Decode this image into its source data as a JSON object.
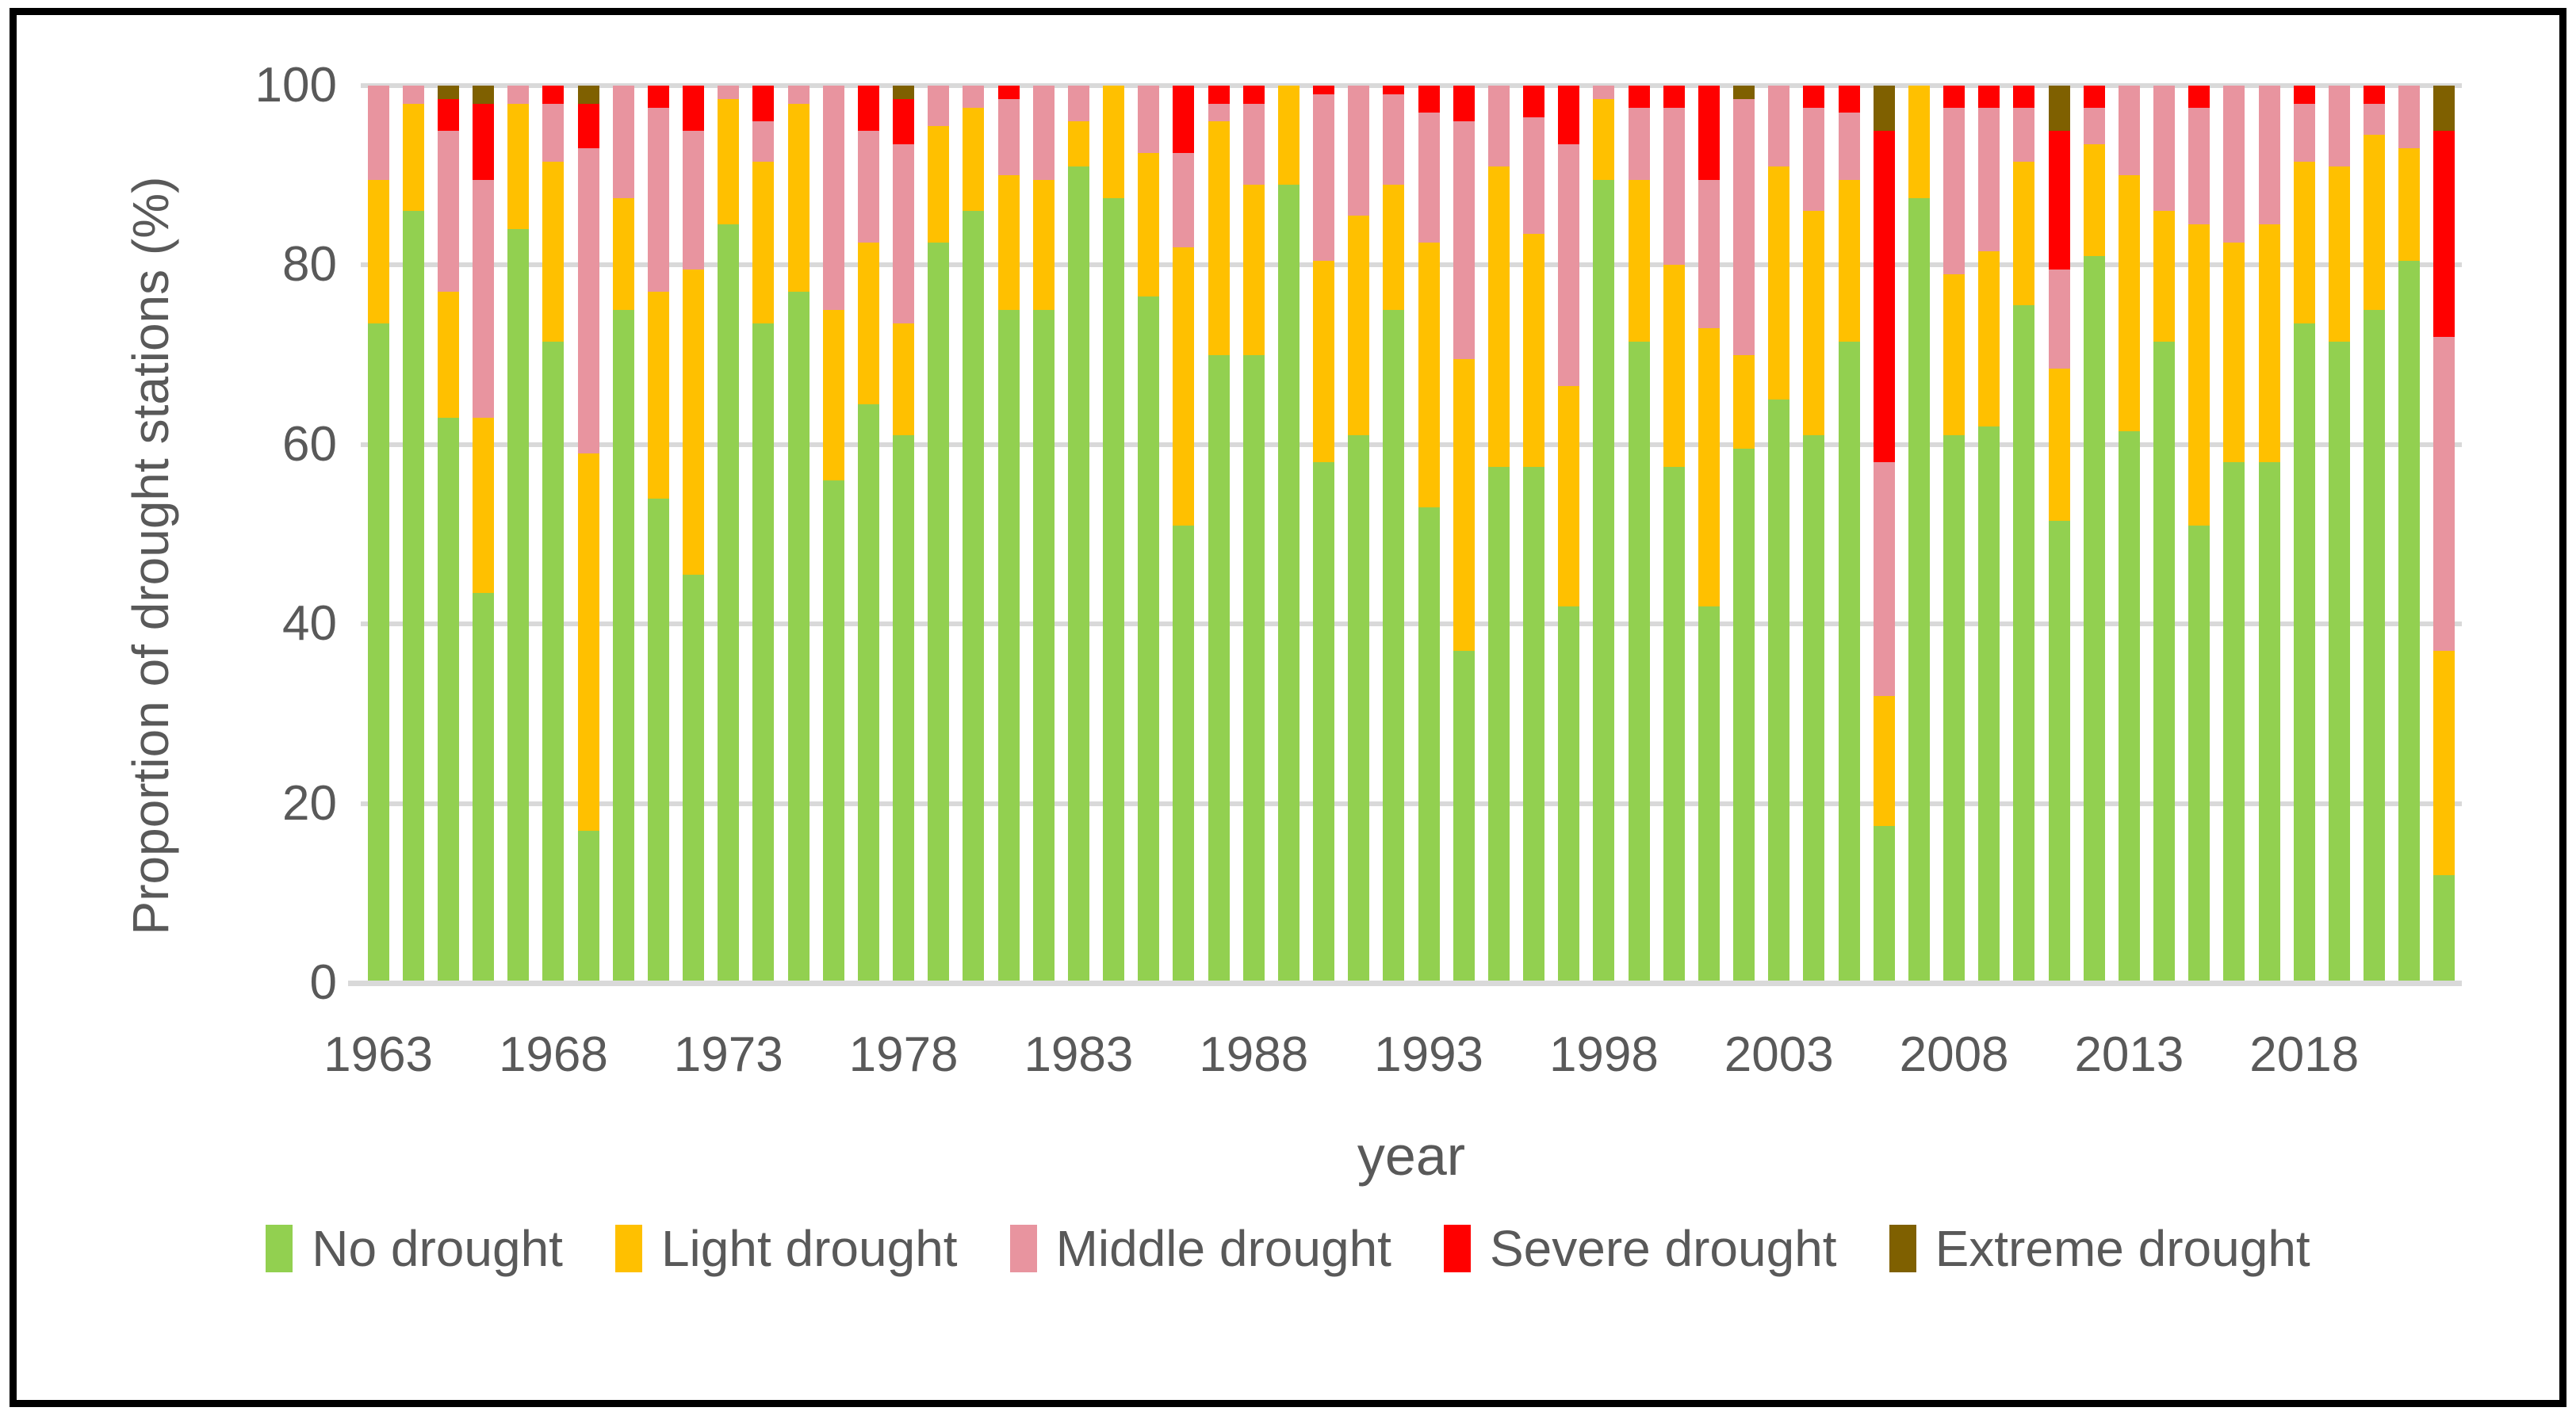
{
  "page": {
    "background": "#ffffff",
    "border_color": "#000000"
  },
  "chart_data": {
    "type": "bar",
    "stacked": true,
    "orientation": "vertical",
    "title": "",
    "xlabel": "year",
    "ylabel": "Proportion of drought stations (%)",
    "ylim": [
      0,
      100
    ],
    "yticks": [
      0,
      20,
      40,
      60,
      80,
      100
    ],
    "xtick_labels": [
      "1963",
      "1968",
      "1973",
      "1978",
      "1983",
      "1988",
      "1993",
      "1998",
      "2003",
      "2008",
      "2013",
      "2018"
    ],
    "grid": "horizontal-only",
    "gridline_color": "#d9d9d9",
    "axis_line_color": "#d9d9d9",
    "text_color": "#595959",
    "legend_position": "bottom",
    "categories": [
      1963,
      1964,
      1965,
      1966,
      1967,
      1968,
      1969,
      1970,
      1971,
      1972,
      1973,
      1974,
      1975,
      1976,
      1977,
      1978,
      1979,
      1980,
      1981,
      1982,
      1983,
      1984,
      1985,
      1986,
      1987,
      1988,
      1989,
      1990,
      1991,
      1992,
      1993,
      1994,
      1995,
      1996,
      1997,
      1998,
      1999,
      2000,
      2001,
      2002,
      2003,
      2004,
      2005,
      2006,
      2007,
      2008,
      2009,
      2010,
      2011,
      2012,
      2013,
      2014,
      2015,
      2016,
      2017,
      2018,
      2019,
      2020,
      2021,
      2022
    ],
    "series": [
      {
        "name": "No drought",
        "color": "#92d050",
        "values": [
          73.5,
          86,
          63,
          43.5,
          84,
          71.5,
          17,
          75,
          54,
          45.5,
          84.5,
          73.5,
          77,
          56,
          64.5,
          61,
          82.5,
          86,
          75,
          75,
          91,
          87.5,
          76.5,
          51,
          70,
          70,
          89,
          58,
          61,
          75,
          53,
          37,
          57.5,
          57.5,
          42,
          89.5,
          71.5,
          57.5,
          42,
          59.5,
          65,
          61,
          71.5,
          17.5,
          87.5,
          61,
          62,
          75.5,
          51.5,
          81,
          61.5,
          71.5,
          51,
          58,
          58,
          73.5,
          71.5,
          75,
          80.5,
          12
        ]
      },
      {
        "name": "Light drought",
        "color": "#ffc000",
        "values": [
          16,
          12,
          14,
          19.5,
          14,
          20,
          42,
          12.5,
          23,
          34,
          14,
          18,
          21,
          19,
          18,
          12.5,
          13,
          11.5,
          15,
          14.5,
          5,
          12.5,
          16,
          31,
          26,
          19,
          11,
          22.5,
          24.5,
          14,
          29.5,
          32.5,
          33.5,
          26,
          24.5,
          9,
          18,
          22.5,
          31,
          10.5,
          26,
          25,
          18,
          14.5,
          12.5,
          18,
          19.5,
          16,
          17,
          12.5,
          28.5,
          14.5,
          33.5,
          24.5,
          26.5,
          18,
          19.5,
          19.5,
          12.5,
          25
        ]
      },
      {
        "name": "Middle drought",
        "color": "#e8949f",
        "values": [
          10.5,
          2,
          18,
          26.5,
          2,
          6.5,
          34,
          12.5,
          20.5,
          15.5,
          1.5,
          4.5,
          2,
          25,
          12.5,
          20,
          4.5,
          2.5,
          8.5,
          10.5,
          4,
          0,
          7.5,
          10.5,
          2,
          9,
          0,
          18.5,
          14.5,
          10,
          14.5,
          26.5,
          9,
          13,
          27,
          1.5,
          8,
          17.5,
          16.5,
          28.5,
          9,
          11.5,
          7.5,
          26,
          0,
          18.5,
          16,
          6,
          11,
          4,
          10,
          14,
          13,
          17.5,
          15.5,
          6.5,
          9,
          3.5,
          7,
          35
        ]
      },
      {
        "name": "Severe drought",
        "color": "#ff0000",
        "values": [
          0,
          0,
          3.5,
          8.5,
          0,
          2,
          5,
          0,
          2.5,
          5,
          0,
          4,
          0,
          0,
          5,
          5,
          0,
          0,
          1.5,
          0,
          0,
          0,
          0,
          7.5,
          2,
          2,
          0,
          1,
          0,
          1,
          3,
          4,
          0,
          3.5,
          6.5,
          0,
          2.5,
          2.5,
          10.5,
          0,
          0,
          2.5,
          3,
          37,
          0,
          2.5,
          2.5,
          2.5,
          15.5,
          2.5,
          0,
          0,
          2.5,
          0,
          0,
          2,
          0,
          2,
          0,
          23
        ]
      },
      {
        "name": "Extreme drought",
        "color": "#7f6000",
        "values": [
          0,
          0,
          1.5,
          2,
          0,
          0,
          2,
          0,
          0,
          0,
          0,
          0,
          0,
          0,
          0,
          1.5,
          0,
          0,
          0,
          0,
          0,
          0,
          0,
          0,
          0,
          0,
          0,
          0,
          0,
          0,
          0,
          0,
          0,
          0,
          0,
          0,
          0,
          0,
          0,
          1.5,
          0,
          0,
          0,
          5,
          0,
          0,
          0,
          0,
          5,
          0,
          0,
          0,
          0,
          0,
          0,
          0,
          0,
          0,
          0,
          5
        ]
      }
    ]
  }
}
